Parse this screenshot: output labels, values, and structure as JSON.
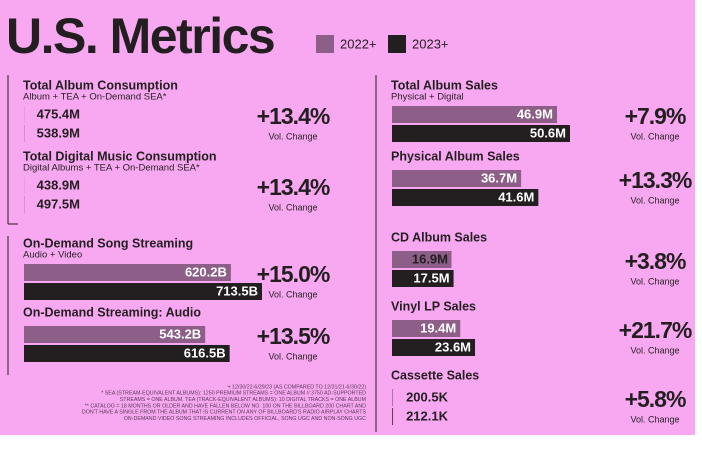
{
  "title": "U.S. Metrics",
  "legend": [
    {
      "name": "2022+",
      "color": "#8c5e88"
    },
    {
      "name": "2023+",
      "color": "#231f20"
    }
  ],
  "left": [
    {
      "name": "Total Album Consumption",
      "subtitle": "Album + TEA + On-Demand SEA*",
      "values": [
        475400000,
        538900000
      ],
      "value_labels": [
        "475.4M",
        "538.9M"
      ],
      "change": "+13.4%",
      "change_caption": "Vol. Change"
    },
    {
      "name": "Total Digital Music Consumption",
      "subtitle": "Digital Albums + TEA + On-Demand SEA*",
      "values": [
        438900000,
        497500000
      ],
      "value_labels": [
        "438.9M",
        "497.5M"
      ],
      "change": "+13.4%",
      "change_caption": "Vol. Change"
    },
    {
      "name": "On-Demand Song Streaming",
      "subtitle": "Audio + Video",
      "values": [
        620200000000,
        713500000000
      ],
      "value_labels": [
        "620.2B",
        "713.5B"
      ],
      "change": "+15.0%",
      "change_caption": "Vol. Change"
    },
    {
      "name": "On-Demand Streaming: Audio",
      "values": [
        543200000000,
        616500000000
      ],
      "value_labels": [
        "543.2B",
        "616.5B"
      ],
      "change": "+13.5%",
      "change_caption": "Vol. Change"
    }
  ],
  "right": [
    {
      "name": "Total Album Sales",
      "subtitle": "Physical + Digital",
      "values": [
        46900000,
        50600000
      ],
      "value_labels": [
        "46.9M",
        "50.6M"
      ],
      "change": "+7.9%",
      "change_caption": "Vol. Change"
    },
    {
      "name": "Physical Album Sales",
      "values": [
        36700000,
        41600000
      ],
      "value_labels": [
        "36.7M",
        "41.6M"
      ],
      "change": "+13.3%",
      "change_caption": "Vol. Change"
    },
    {
      "name": "CD Album Sales",
      "values": [
        16900000,
        17500000
      ],
      "value_labels": [
        "16.9M",
        "17.5M"
      ],
      "change": "+3.8%",
      "change_caption": "Vol. Change"
    },
    {
      "name": "Vinyl LP Sales",
      "values": [
        19400000,
        23600000
      ],
      "value_labels": [
        "19.4M",
        "23.6M"
      ],
      "change": "+21.7%",
      "change_caption": "Vol. Change"
    },
    {
      "name": "Cassette Sales",
      "values": [
        200500,
        212100
      ],
      "value_labels": [
        "200.5K",
        "212.1K"
      ],
      "change": "+5.8%",
      "change_caption": "Vol. Change"
    }
  ],
  "footnotes": [
    "+ 12/30/22-6/29/23 (AS COMPARED TO 12/31/21-6/30/22)",
    "* SEA (STREAM-EQUIVALENT ALBUMS): 1250 PREMIUM STREAMS = ONE ALBUM // 3750 AD-SUPPORTED",
    "STREAMS = ONE ALBUM. TEA (TRACK-EQUIVALENT ALBUMS): 10 DIGITAL TRACKS = ONE ALBUM",
    "** CATALOG = 18 MONTHS OR OLDER AND HAVE FALLEN BELOW NO. 100 ON THE BILLBOARD 200 CHART AND",
    "DON'T HAVE A SINGLE FROM THE ALBUM THAT IS CURRENT ON ANY OF BILLBOARD'S RADIO AIRPLAY CHARTS",
    "ON-DEMAND VIDEO SONG STREAMING INCLUDES OFFICIAL, SONG UGC AND NON-SONG UGC"
  ]
}
